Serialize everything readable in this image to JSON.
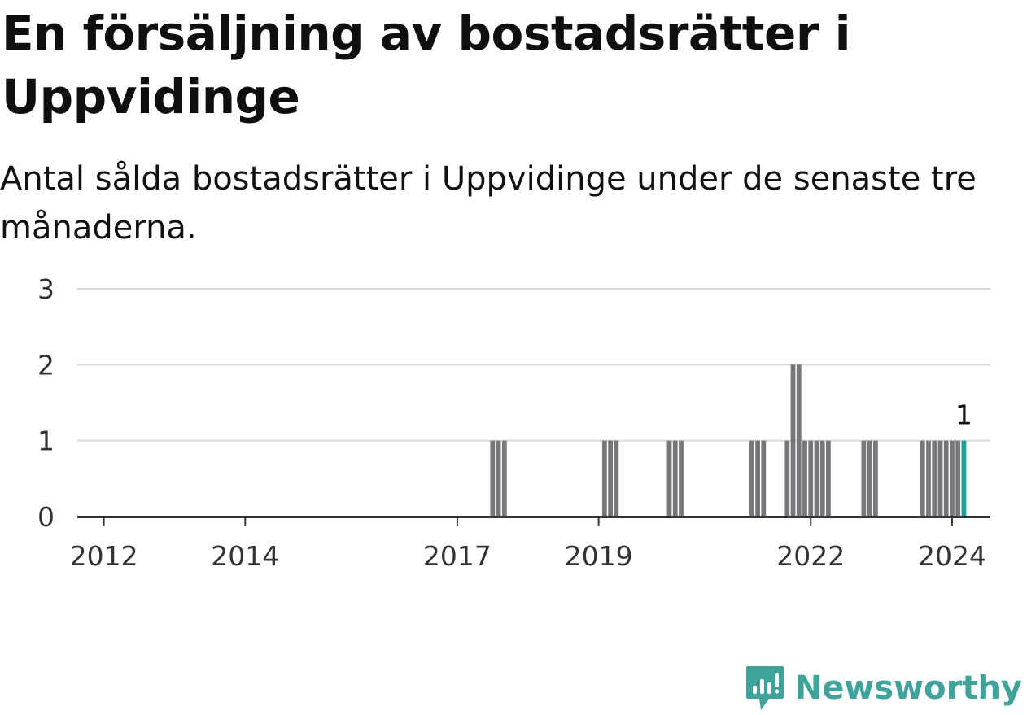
{
  "header": {
    "title": "En försäljning av bostadsrätter i Uppvidinge",
    "subtitle": "Antal sålda bostadsrätter i Uppvidinge under de senaste tre månaderna."
  },
  "brand": {
    "name": "Newsworthy",
    "color": "#3fa39b"
  },
  "colors": {
    "bar": "#77767b",
    "highlight": "#1aa39b",
    "grid": "#d9d9d9",
    "axis": "#333333"
  },
  "chart_data": {
    "type": "bar",
    "title": "En försäljning av bostadsrätter i Uppvidinge",
    "subtitle": "Antal sålda bostadsrätter i Uppvidinge under de senaste tre månaderna.",
    "xlabel": "",
    "ylabel": "",
    "ylim": [
      0,
      3
    ],
    "yticks": [
      0,
      1,
      2,
      3
    ],
    "xticks": [
      "2012",
      "2014",
      "2017",
      "2019",
      "2022",
      "2024"
    ],
    "grid": true,
    "values": [
      {
        "x": "2017-07",
        "y": 1
      },
      {
        "x": "2017-08",
        "y": 1
      },
      {
        "x": "2017-09",
        "y": 1
      },
      {
        "x": "2019-02",
        "y": 1
      },
      {
        "x": "2019-03",
        "y": 1
      },
      {
        "x": "2019-04",
        "y": 1
      },
      {
        "x": "2020-01",
        "y": 1
      },
      {
        "x": "2020-02",
        "y": 1
      },
      {
        "x": "2020-03",
        "y": 1
      },
      {
        "x": "2021-03",
        "y": 1
      },
      {
        "x": "2021-04",
        "y": 1
      },
      {
        "x": "2021-05",
        "y": 1
      },
      {
        "x": "2021-09",
        "y": 1
      },
      {
        "x": "2021-10",
        "y": 2
      },
      {
        "x": "2021-11",
        "y": 2
      },
      {
        "x": "2021-12",
        "y": 1
      },
      {
        "x": "2022-01",
        "y": 1
      },
      {
        "x": "2022-02",
        "y": 1
      },
      {
        "x": "2022-03",
        "y": 1
      },
      {
        "x": "2022-04",
        "y": 1
      },
      {
        "x": "2022-10",
        "y": 1
      },
      {
        "x": "2022-11",
        "y": 1
      },
      {
        "x": "2022-12",
        "y": 1
      },
      {
        "x": "2023-08",
        "y": 1
      },
      {
        "x": "2023-09",
        "y": 1
      },
      {
        "x": "2023-10",
        "y": 1
      },
      {
        "x": "2023-11",
        "y": 1
      },
      {
        "x": "2023-12",
        "y": 1
      },
      {
        "x": "2024-01",
        "y": 1
      },
      {
        "x": "2024-02",
        "y": 1
      },
      {
        "x": "2024-03",
        "y": 1
      }
    ],
    "highlight": {
      "x": "2024-03",
      "label": "1"
    }
  }
}
